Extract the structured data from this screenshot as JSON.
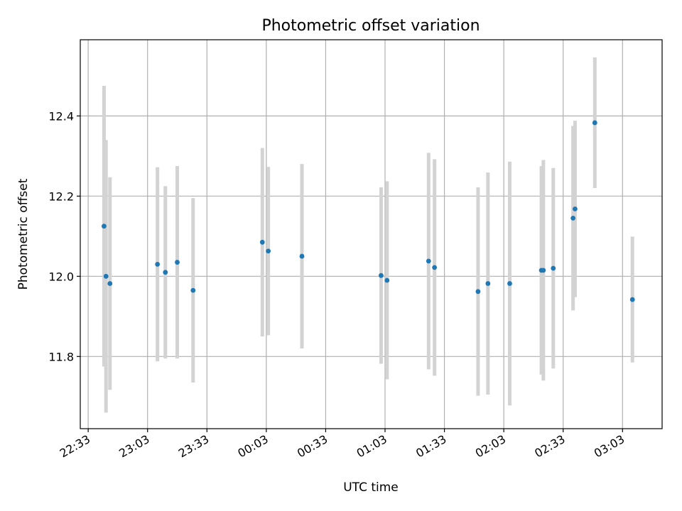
{
  "chart_data": {
    "type": "scatter",
    "title": "Photometric offset variation",
    "xlabel": "UTC time",
    "ylabel": "Photometric offset",
    "x_ticks": [
      "22:33",
      "23:03",
      "23:33",
      "00:03",
      "00:33",
      "01:03",
      "01:33",
      "02:03",
      "02:33",
      "03:03"
    ],
    "y_ticks": [
      "11.8",
      "12.0",
      "12.2",
      "12.4"
    ],
    "x_range": [
      "22:29",
      "03:23"
    ],
    "ylim": [
      11.62,
      12.59
    ],
    "grid": true,
    "colors": {
      "points": "#1f77b4",
      "errorbars": "#d3d3d3",
      "grid": "#b0b0b0"
    },
    "series": [
      {
        "points": [
          {
            "x": "22:41",
            "y": 12.125,
            "err": 0.35
          },
          {
            "x": "22:42",
            "y": 12.0,
            "err": 0.34
          },
          {
            "x": "22:44",
            "y": 11.982,
            "err": 0.265
          },
          {
            "x": "23:08",
            "y": 12.03,
            "err": 0.242
          },
          {
            "x": "23:12",
            "y": 12.01,
            "err": 0.215
          },
          {
            "x": "23:18",
            "y": 12.035,
            "err": 0.24
          },
          {
            "x": "23:26",
            "y": 11.965,
            "err": 0.23
          },
          {
            "x": "00:01",
            "y": 12.085,
            "err": 0.235
          },
          {
            "x": "00:04",
            "y": 12.063,
            "err": 0.21
          },
          {
            "x": "00:21",
            "y": 12.05,
            "err": 0.23
          },
          {
            "x": "01:01",
            "y": 12.002,
            "err": 0.22
          },
          {
            "x": "01:04",
            "y": 11.99,
            "err": 0.247
          },
          {
            "x": "01:25",
            "y": 12.038,
            "err": 0.27
          },
          {
            "x": "01:28",
            "y": 12.022,
            "err": 0.27
          },
          {
            "x": "01:50",
            "y": 11.962,
            "err": 0.26
          },
          {
            "x": "01:55",
            "y": 11.982,
            "err": 0.277
          },
          {
            "x": "02:06",
            "y": 11.982,
            "err": 0.304
          },
          {
            "x": "02:22",
            "y": 12.015,
            "err": 0.26
          },
          {
            "x": "02:23",
            "y": 12.015,
            "err": 0.275
          },
          {
            "x": "02:28",
            "y": 12.02,
            "err": 0.25
          },
          {
            "x": "02:38",
            "y": 12.145,
            "err": 0.23
          },
          {
            "x": "02:39",
            "y": 12.168,
            "err": 0.22
          },
          {
            "x": "02:49",
            "y": 12.383,
            "err": 0.163
          },
          {
            "x": "03:08",
            "y": 11.942,
            "err": 0.157
          }
        ]
      }
    ]
  }
}
